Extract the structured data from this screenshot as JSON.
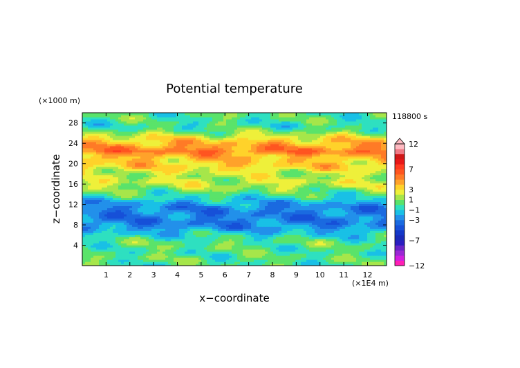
{
  "chart_data": {
    "type": "heatmap",
    "title": "Potential temperature",
    "xlabel": "x−coordinate",
    "ylabel": "z−coordinate",
    "x_unit": "(×1E4 m)",
    "y_unit": "(×1000 m)",
    "time_label": "118800 s",
    "xlim": [
      0,
      12.8
    ],
    "ylim": [
      0,
      30
    ],
    "x_ticks": [
      1,
      2,
      3,
      4,
      5,
      6,
      7,
      8,
      9,
      10,
      11,
      12
    ],
    "y_ticks": [
      4,
      8,
      12,
      16,
      20,
      24,
      28
    ],
    "colorbar": {
      "labels": [
        "12",
        "7",
        "3",
        "1",
        "−1",
        "−3",
        "−7",
        "−12"
      ],
      "label_values": [
        12,
        7,
        3,
        1,
        -1,
        -3,
        -7,
        -12
      ],
      "levels": [
        -12,
        -11,
        -10,
        -9,
        -8,
        -7,
        -6,
        -5,
        -4,
        -3,
        -2,
        -1,
        0,
        1,
        2,
        3,
        4,
        5,
        6,
        7,
        8,
        9,
        10,
        11,
        12
      ],
      "colors": [
        "#ff1fb4",
        "#d21ee0",
        "#9a28d4",
        "#6a24c8",
        "#2a1ec0",
        "#1a2ab8",
        "#1438c8",
        "#1650d8",
        "#1a6ae0",
        "#2290ea",
        "#19c0e6",
        "#2ee0c0",
        "#5ae36a",
        "#a6e64a",
        "#eef03a",
        "#ffd22a",
        "#ffa22a",
        "#ff7a26",
        "#ff5520",
        "#ff3a20",
        "#e81818",
        "#d01818",
        "#f07a86",
        "#ffbac2"
      ]
    },
    "z_profile": {
      "z": [
        0.5,
        1.5,
        2.5,
        3.5,
        4.5,
        5.5,
        6.5,
        7.5,
        8.5,
        9.5,
        10.5,
        11.5,
        12.5,
        13.5,
        14.5,
        15.5,
        16.5,
        17.5,
        18.5,
        19.5,
        20.5,
        21.5,
        22.5,
        23.5,
        24.5,
        25.5,
        26.5,
        27.5,
        28.5,
        29.5
      ],
      "value": [
        0,
        0.3,
        0,
        0.2,
        0.3,
        -0.3,
        -1.3,
        -2.4,
        -3,
        -3,
        -3,
        -2.8,
        -1.8,
        -0.6,
        0.4,
        1.5,
        2,
        1.6,
        2.2,
        3.4,
        3.5,
        4,
        5.5,
        4.6,
        3.6,
        2.1,
        0.5,
        -0.3,
        0,
        0.2
      ]
    }
  }
}
